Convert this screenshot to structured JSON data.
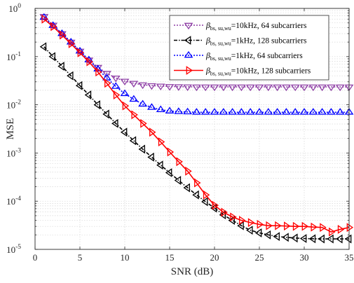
{
  "chart_data": {
    "type": "line",
    "xlabel": "SNR (dB)",
    "ylabel": "MSE",
    "xlim": [
      0,
      35
    ],
    "ylim_log10": [
      -5,
      0
    ],
    "yscale": "log",
    "grid": true,
    "legend_position": "top-right",
    "x_ticks": [
      "0",
      "5",
      "10",
      "15",
      "20",
      "25",
      "30",
      "35"
    ],
    "y_ticks": [
      {
        "base": "10",
        "exp": "0"
      },
      {
        "base": "10",
        "exp": "-1"
      },
      {
        "base": "10",
        "exp": "-2"
      },
      {
        "base": "10",
        "exp": "-3"
      },
      {
        "base": "10",
        "exp": "-4"
      },
      {
        "base": "10",
        "exp": "-5"
      }
    ],
    "x": [
      1,
      2,
      3,
      4,
      5,
      6,
      7,
      8,
      9,
      10,
      11,
      12,
      13,
      14,
      15,
      16,
      17,
      18,
      19,
      20,
      21,
      22,
      23,
      24,
      25,
      26,
      27,
      28,
      29,
      30,
      31,
      32,
      33,
      34,
      35
    ],
    "series": [
      {
        "name": "=10kHz, 64 subcarriers",
        "beta": "β",
        "beta_sub": "bs, su,wu",
        "color": "#8e3fa5",
        "marker": "triangle-down",
        "dash": "dotted",
        "values": [
          0.68,
          0.45,
          0.3,
          0.2,
          0.13,
          0.085,
          0.06,
          0.045,
          0.036,
          0.031,
          0.028,
          0.026,
          0.025,
          0.0245,
          0.024,
          0.0238,
          0.0236,
          0.0235,
          0.0235,
          0.0235,
          0.0235,
          0.0235,
          0.0235,
          0.0235,
          0.0235,
          0.0235,
          0.0235,
          0.0235,
          0.0235,
          0.0235,
          0.0235,
          0.0235,
          0.0235,
          0.0235,
          0.0235
        ]
      },
      {
        "name": "=1kHz, 128 subcarriers",
        "beta": "β",
        "beta_sub": "bs, su,wu",
        "color": "#000000",
        "marker": "triangle-left",
        "dash": "dashdot",
        "values": [
          0.16,
          0.1,
          0.063,
          0.04,
          0.025,
          0.016,
          0.01,
          0.0064,
          0.0041,
          0.0027,
          0.0018,
          0.0012,
          0.00082,
          0.00056,
          0.00039,
          0.00027,
          0.00019,
          0.000135,
          9.75e-05,
          7.2e-05,
          5.2e-05,
          4e-05,
          3.1e-05,
          2.5e-05,
          2.2e-05,
          2e-05,
          1.85e-05,
          1.78e-05,
          1.72e-05,
          1.68e-05,
          1.66e-05,
          1.65e-05,
          1.65e-05,
          1.65e-05,
          1.65e-05
        ]
      },
      {
        "name": "=1kHz, 64 subcarriers",
        "beta": "β",
        "beta_sub": "bs, su,wu",
        "color": "#0000ff",
        "marker": "triangle-up",
        "dash": "dotted",
        "values": [
          0.65,
          0.44,
          0.3,
          0.2,
          0.13,
          0.085,
          0.055,
          0.036,
          0.024,
          0.017,
          0.013,
          0.0103,
          0.0088,
          0.0079,
          0.0074,
          0.0072,
          0.0071,
          0.007,
          0.007,
          0.007,
          0.007,
          0.007,
          0.007,
          0.007,
          0.007,
          0.007,
          0.007,
          0.007,
          0.007,
          0.007,
          0.007,
          0.007,
          0.007,
          0.007,
          0.007
        ]
      },
      {
        "name": "=10kHz, 128 subcarriers",
        "beta": "β",
        "beta_sub": "bs, su,wu",
        "color": "#ff0000",
        "marker": "triangle-right",
        "dash": "solid",
        "values": [
          0.6,
          0.42,
          0.28,
          0.185,
          0.12,
          0.078,
          0.048,
          0.028,
          0.016,
          0.0095,
          0.0062,
          0.0041,
          0.0027,
          0.0017,
          0.00105,
          0.00066,
          0.00042,
          0.00024,
          0.000135,
          8.2e-05,
          5.9e-05,
          4.7e-05,
          4e-05,
          3.6e-05,
          3.3e-05,
          3.1e-05,
          3.1e-05,
          3.05e-05,
          3e-05,
          3e-05,
          2.9e-05,
          2.85e-05,
          2.3e-05,
          2.6e-05,
          2.85e-05
        ]
      }
    ]
  }
}
